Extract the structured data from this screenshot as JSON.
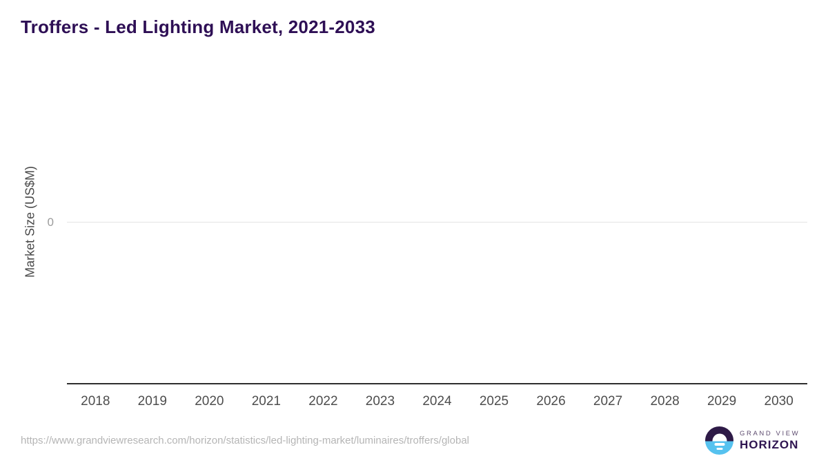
{
  "title": "Troffers - Led Lighting Market, 2021-2033",
  "chart_data": {
    "type": "bar",
    "title": "Troffers - Led Lighting Market, 2021-2033",
    "categories": [
      "2018",
      "2019",
      "2020",
      "2021",
      "2022",
      "2023",
      "2024",
      "2025",
      "2026",
      "2027",
      "2028",
      "2029",
      "2030"
    ],
    "values": [
      0,
      0,
      0,
      0,
      0,
      0,
      0,
      0,
      0,
      0,
      0,
      0,
      0
    ],
    "xlabel": "",
    "ylabel": "Market Size (US$M)",
    "y_ticks": [
      "0"
    ],
    "grid": "single horizontal gridline at y=0",
    "legend": "none",
    "note": "plot area empty - no bars rendered"
  },
  "axes": {
    "y_label": "Market Size (US$M)",
    "y_tick_zero": "0"
  },
  "footer": {
    "source_url": "https://www.grandviewresearch.com/horizon/statistics/led-lighting-market/luminaires/troffers/global"
  },
  "logo": {
    "line1": "GRAND VIEW",
    "line2": "HORIZON"
  },
  "colors": {
    "title": "#2e0f55",
    "axis_label": "#4a4a4a",
    "tick_label": "#9b9b9b",
    "x_tick_label": "#4d4d4d",
    "gridline": "#e4e4e4",
    "axis_line": "#2d2d2d",
    "footer_url": "#b5b5b5",
    "logo_purple": "#2e1a47",
    "logo_blue": "#56c2ef",
    "logo_horizon_text": "#2e1450"
  }
}
